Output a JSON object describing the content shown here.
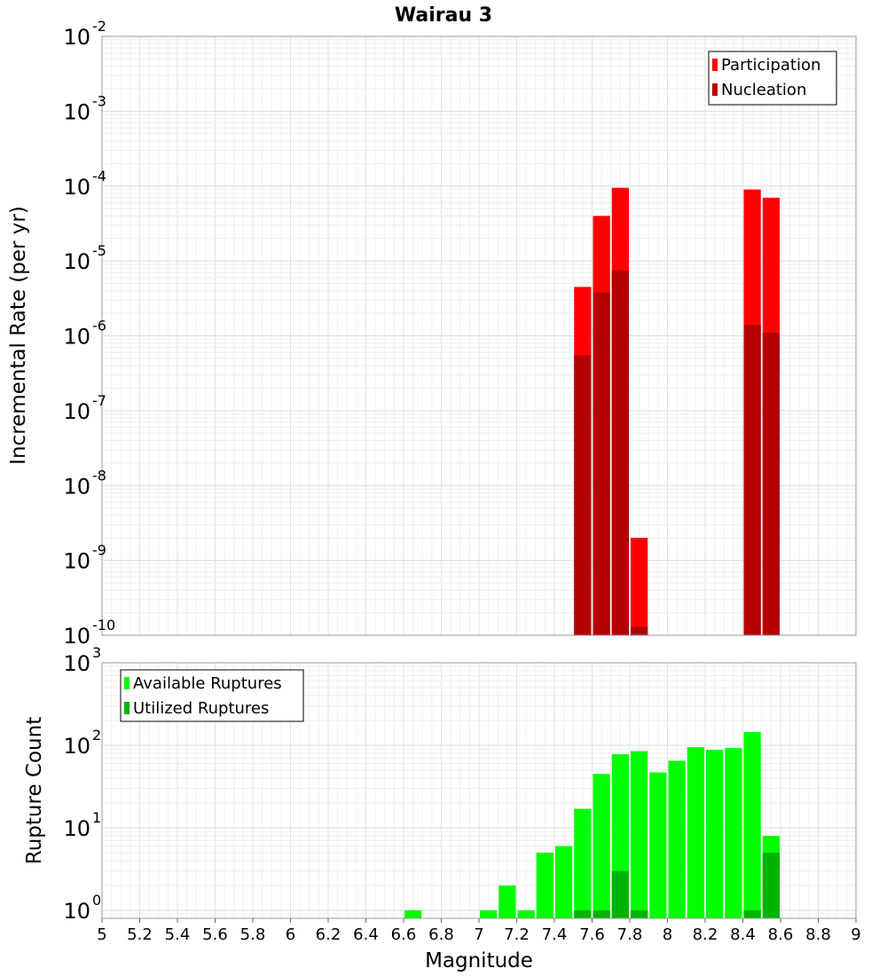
{
  "chart_data": [
    {
      "type": "bar",
      "title": "Wairau 3",
      "ylabel": "Incremental Rate (per yr)",
      "xlabel": "",
      "yscale": "log",
      "ylim": [
        1e-10,
        0.01
      ],
      "xlim": [
        5,
        9
      ],
      "bin_width": 0.1,
      "y_tick_mantissa": [
        "10",
        "10",
        "10",
        "10",
        "10",
        "10",
        "10",
        "10",
        "10"
      ],
      "y_tick_exponent": [
        "-10",
        "-9",
        "-8",
        "-7",
        "-6",
        "-5",
        "-4",
        "-3",
        "-2"
      ],
      "legend": {
        "placement": "top-right",
        "entries": [
          "Participation",
          "Nucleation"
        ]
      },
      "series": [
        {
          "name": "Participation",
          "color": "#ff0000",
          "x": [
            7.55,
            7.65,
            7.75,
            7.85,
            8.45,
            8.55
          ],
          "values": [
            4.5e-06,
            4e-05,
            9.5e-05,
            2e-09,
            9e-05,
            7e-05
          ]
        },
        {
          "name": "Nucleation",
          "color": "#b30000",
          "x": [
            7.55,
            7.65,
            7.75,
            7.85,
            8.45,
            8.55
          ],
          "values": [
            5.5e-07,
            3.8e-06,
            7.5e-06,
            1.3e-10,
            1.4e-06,
            1.1e-06
          ]
        }
      ],
      "grid": true
    },
    {
      "type": "bar",
      "title": "",
      "ylabel": "Rupture Count",
      "xlabel": "Magnitude",
      "yscale": "log",
      "ylim": [
        0.8,
        1000
      ],
      "xlim": [
        5,
        9
      ],
      "bin_width": 0.1,
      "x_ticks": [
        "5",
        "5.2",
        "5.4",
        "5.6",
        "5.8",
        "6",
        "6.2",
        "6.4",
        "6.6",
        "6.8",
        "7",
        "7.2",
        "7.4",
        "7.6",
        "7.8",
        "8",
        "8.2",
        "8.4",
        "8.6",
        "8.8",
        "9"
      ],
      "y_tick_mantissa": [
        "10",
        "10",
        "10",
        "10"
      ],
      "y_tick_exponent": [
        "0",
        "1",
        "2",
        "3"
      ],
      "legend": {
        "placement": "top-left",
        "entries": [
          "Available Ruptures",
          "Utilized Ruptures"
        ]
      },
      "series": [
        {
          "name": "Available Ruptures",
          "color": "#00ff00",
          "x": [
            6.65,
            7.05,
            7.15,
            7.25,
            7.35,
            7.45,
            7.55,
            7.65,
            7.75,
            7.85,
            7.95,
            8.05,
            8.15,
            8.25,
            8.35,
            8.45,
            8.55
          ],
          "values": [
            1,
            1,
            2,
            1,
            5,
            6,
            17,
            45,
            78,
            85,
            47,
            65,
            95,
            88,
            93,
            145,
            8
          ]
        },
        {
          "name": "Utilized Ruptures",
          "color": "#00b300",
          "x": [
            7.55,
            7.65,
            7.75,
            7.85,
            8.45,
            8.55
          ],
          "values": [
            1,
            1,
            3,
            1,
            1,
            5
          ]
        }
      ],
      "grid": true
    }
  ]
}
